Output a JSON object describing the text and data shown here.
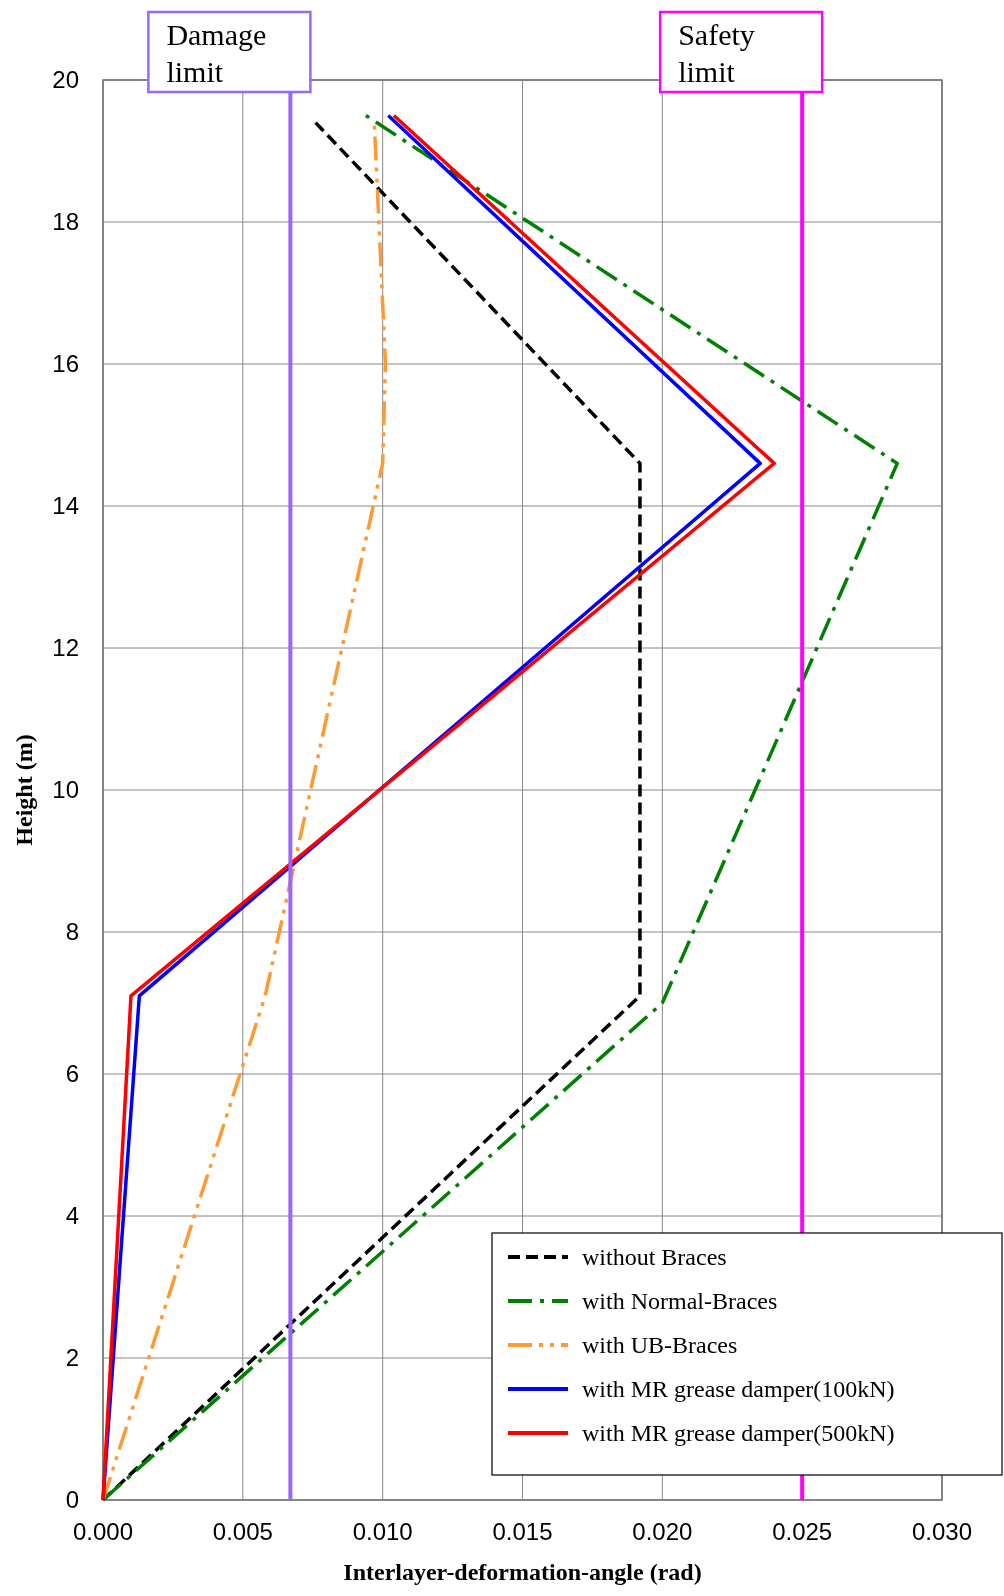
{
  "chart_data": {
    "type": "line",
    "xlabel": "Interlayer-deformation-angle (rad)",
    "ylabel": "Height (m)",
    "xlim": [
      0,
      0.03
    ],
    "xticks": [
      {
        "value": 0,
        "label": "0.000"
      },
      {
        "value": 0.005,
        "label": "0.005"
      },
      {
        "value": 0.01,
        "label": "0.010"
      },
      {
        "value": 0.015,
        "label": "0.015"
      },
      {
        "value": 0.02,
        "label": "0.020"
      },
      {
        "value": 0.025,
        "label": "0.025"
      },
      {
        "value": 0.03,
        "label": "0.030"
      }
    ],
    "ylim": [
      0,
      20
    ],
    "yticks": [
      0,
      2,
      4,
      6,
      8,
      10,
      12,
      14,
      16,
      18,
      20
    ],
    "grid": true,
    "legend": "bottom right",
    "series": [
      {
        "name": "without Braces",
        "color": "#000000",
        "line_style": "dashed",
        "x": [
          0,
          0.0192,
          0.0192,
          0.0076
        ],
        "values": [
          0,
          7.1,
          14.6,
          19.4
        ]
      },
      {
        "name": "with Normal-Braces",
        "color": "#008000",
        "line_style": "dashdot",
        "x": [
          0,
          0.02,
          0.0284,
          0.0094
        ],
        "values": [
          0,
          7.0,
          14.6,
          19.5
        ]
      },
      {
        "name": "with UB-Braces",
        "color": "#ff9933",
        "line_style": "dashdotdot",
        "x": [
          0,
          0.0058,
          0.01,
          0.0101,
          0.0097
        ],
        "values": [
          0,
          7.1,
          14.6,
          16.0,
          19.4
        ]
      },
      {
        "name": "with MR grease damper(100kN)",
        "color": "#0000ff",
        "line_style": "solid",
        "x": [
          0,
          0.0013,
          0.0235,
          0.0102
        ],
        "values": [
          0,
          7.1,
          14.6,
          19.5
        ]
      },
      {
        "name": "with MR grease damper(500kN)",
        "color": "#ff0000",
        "line_style": "solid",
        "x": [
          0,
          0.001,
          0.024,
          0.0104
        ],
        "values": [
          0,
          7.1,
          14.6,
          19.5
        ]
      }
    ],
    "ref_lines": [
      {
        "axis": "x",
        "value": 0.0067,
        "label": "Damage\nlimit",
        "color": "#9966ff"
      },
      {
        "axis": "x",
        "value": 0.025,
        "label": "Safety\nlimit",
        "color": "#ff00ff"
      }
    ]
  }
}
